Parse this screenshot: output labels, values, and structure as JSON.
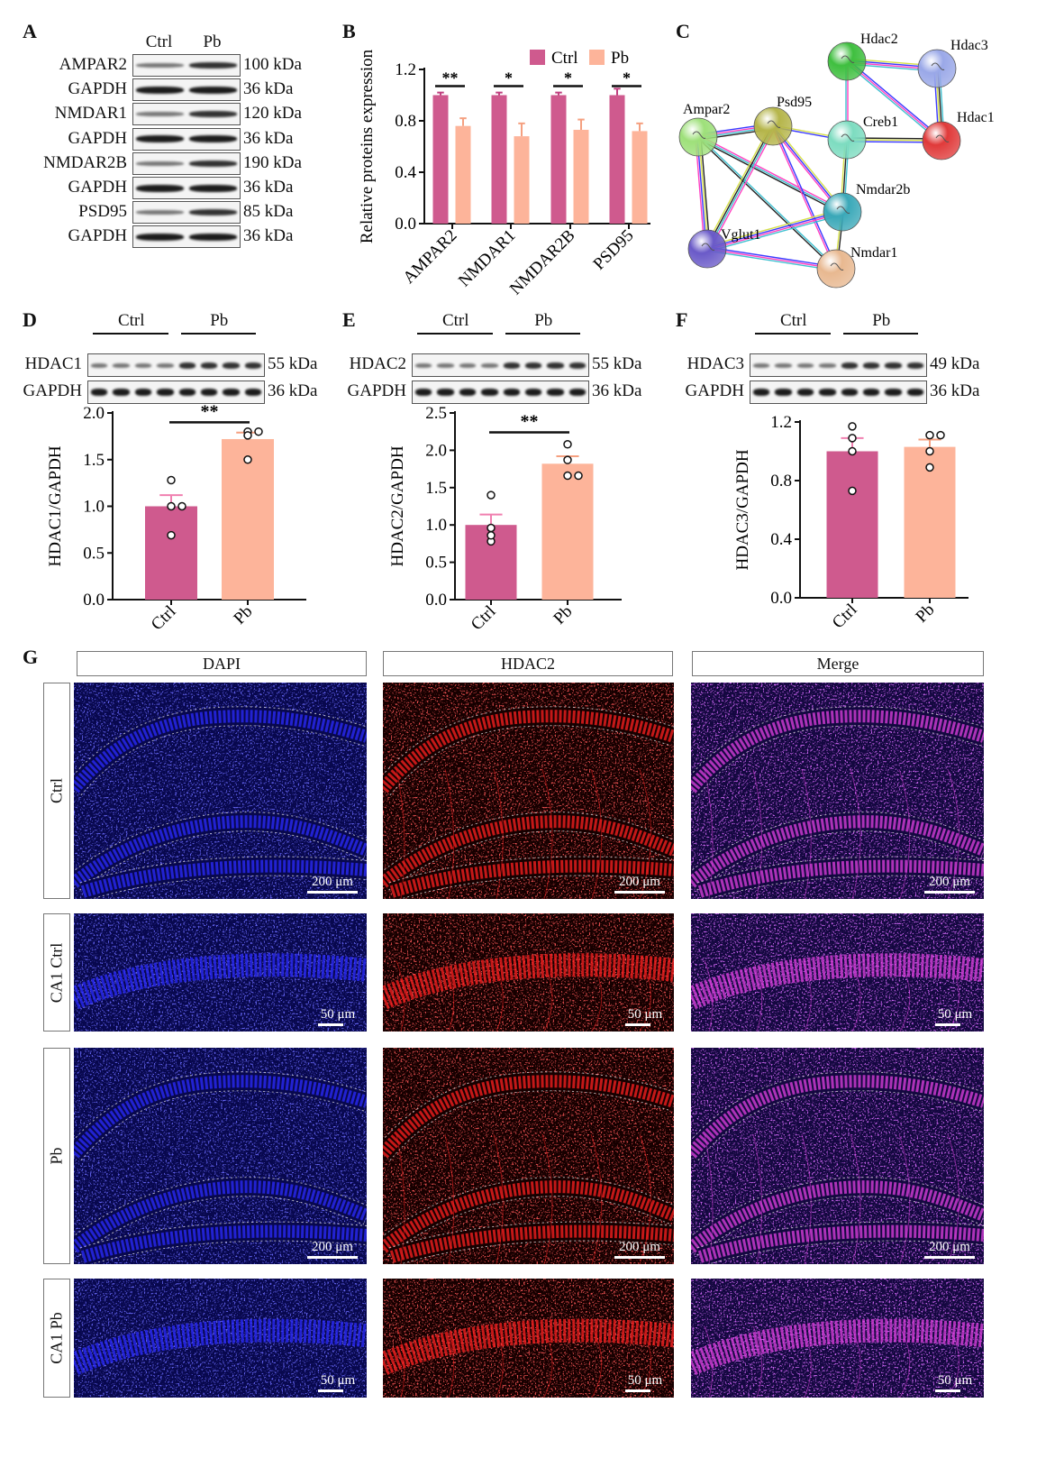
{
  "panels": {
    "A": "A",
    "B": "B",
    "C": "C",
    "D": "D",
    "E": "E",
    "F": "F",
    "G": "G"
  },
  "colors": {
    "ctrl": "#cf5a8e",
    "pb": "#fdb49a",
    "dapi": "#2b2bff",
    "hdac2": "#ff2020",
    "merge": "#e040e0"
  },
  "blot_a": {
    "groups": [
      "Ctrl",
      "Pb"
    ],
    "rows": [
      {
        "label": "AMPAR2",
        "kda": "100 kDa"
      },
      {
        "label": "GAPDH",
        "kda": "36 kDa"
      },
      {
        "label": "NMDAR1",
        "kda": "120 kDa"
      },
      {
        "label": "GAPDH",
        "kda": "36 kDa"
      },
      {
        "label": "NMDAR2B",
        "kda": "190 kDa"
      },
      {
        "label": "GAPDH",
        "kda": "36 kDa"
      },
      {
        "label": "PSD95",
        "kda": "85 kDa"
      },
      {
        "label": "GAPDH",
        "kda": "36 kDa"
      }
    ]
  },
  "blot_d": {
    "groups": [
      "Ctrl",
      "Pb"
    ],
    "rows": [
      {
        "label": "HDAC1",
        "kda": "55 kDa"
      },
      {
        "label": "GAPDH",
        "kda": "36 kDa"
      }
    ]
  },
  "blot_e": {
    "groups": [
      "Ctrl",
      "Pb"
    ],
    "rows": [
      {
        "label": "HDAC2",
        "kda": "55 kDa"
      },
      {
        "label": "GAPDH",
        "kda": "36 kDa"
      }
    ]
  },
  "blot_f": {
    "groups": [
      "Ctrl",
      "Pb"
    ],
    "rows": [
      {
        "label": "HDAC3",
        "kda": "49 kDa"
      },
      {
        "label": "GAPDH",
        "kda": "36 kDa"
      }
    ]
  },
  "network": {
    "nodes": [
      {
        "name": "Hdac2",
        "color": "#3fbf3f"
      },
      {
        "name": "Hdac3",
        "color": "#9aa8e8"
      },
      {
        "name": "Hdac1",
        "color": "#e03a3a"
      },
      {
        "name": "Creb1",
        "color": "#7ddcc0"
      },
      {
        "name": "Psd95",
        "color": "#b5b54a"
      },
      {
        "name": "Ampar2",
        "color": "#9ee07a"
      },
      {
        "name": "Nmdar2b",
        "color": "#3aa8b8"
      },
      {
        "name": "Vglut1",
        "color": "#6a5ac8"
      },
      {
        "name": "Nmdar1",
        "color": "#e8b890"
      }
    ],
    "edges": [
      [
        "Hdac2",
        "Hdac3"
      ],
      [
        "Hdac2",
        "Hdac1"
      ],
      [
        "Hdac2",
        "Creb1"
      ],
      [
        "Hdac3",
        "Hdac1"
      ],
      [
        "Creb1",
        "Hdac1"
      ],
      [
        "Psd95",
        "Creb1"
      ],
      [
        "Ampar2",
        "Psd95"
      ],
      [
        "Ampar2",
        "Nmdar2b"
      ],
      [
        "Ampar2",
        "Nmdar1"
      ],
      [
        "Ampar2",
        "Vglut1"
      ],
      [
        "Psd95",
        "Nmdar2b"
      ],
      [
        "Psd95",
        "Nmdar1"
      ],
      [
        "Psd95",
        "Vglut1"
      ],
      [
        "Creb1",
        "Nmdar2b"
      ],
      [
        "Nmdar2b",
        "Nmdar1"
      ],
      [
        "Vglut1",
        "Nmdar2b"
      ],
      [
        "Vglut1",
        "Nmdar1"
      ]
    ]
  },
  "chart_data": [
    {
      "type": "bar",
      "panel": "B",
      "categories": [
        "AMPAR2",
        "NMDAR1",
        "NMDAR2B",
        "PSD95"
      ],
      "series": [
        {
          "name": "Ctrl",
          "values": [
            1.0,
            1.0,
            1.0,
            1.0
          ],
          "errors": [
            0.02,
            0.02,
            0.02,
            0.05
          ]
        },
        {
          "name": "Pb",
          "values": [
            0.76,
            0.68,
            0.73,
            0.72
          ],
          "errors": [
            0.06,
            0.1,
            0.08,
            0.06
          ]
        }
      ],
      "significance": [
        "**",
        "*",
        "*",
        "*"
      ],
      "ylabel": "Relative proteins expression",
      "ylim": [
        0,
        1.2
      ],
      "yticks": [
        "0.0",
        "0.4",
        "0.8",
        "1.2"
      ],
      "legend": "top-right",
      "grid": false
    },
    {
      "type": "bar",
      "panel": "D",
      "categories": [
        "Ctrl",
        "Pb"
      ],
      "values": [
        1.0,
        1.72
      ],
      "errors": [
        0.12,
        0.07
      ],
      "points": [
        [
          1.28,
          1.0,
          1.0,
          0.69
        ],
        [
          1.8,
          1.76,
          1.8,
          1.5
        ]
      ],
      "significance": [
        "**"
      ],
      "ylabel": "HDAC1/GAPDH",
      "ylim": [
        0,
        2.0
      ],
      "yticks": [
        "0.0",
        "0.5",
        "1.0",
        "1.5",
        "2.0"
      ],
      "grid": false
    },
    {
      "type": "bar",
      "panel": "E",
      "categories": [
        "Ctrl",
        "Pb"
      ],
      "values": [
        1.0,
        1.82
      ],
      "errors": [
        0.14,
        0.1
      ],
      "points": [
        [
          1.4,
          0.96,
          0.78,
          0.86
        ],
        [
          2.08,
          1.87,
          1.66,
          1.66
        ]
      ],
      "significance": [
        "**"
      ],
      "ylabel": "HDAC2/GAPDH",
      "ylim": [
        0,
        2.5
      ],
      "yticks": [
        "0.0",
        "0.5",
        "1.0",
        "1.5",
        "2.0",
        "2.5"
      ],
      "grid": false
    },
    {
      "type": "bar",
      "panel": "F",
      "categories": [
        "Ctrl",
        "Pb"
      ],
      "values": [
        1.0,
        1.03
      ],
      "errors": [
        0.09,
        0.05
      ],
      "points": [
        [
          1.17,
          1.09,
          1.0,
          0.73
        ],
        [
          1.11,
          1.11,
          1.0,
          0.89
        ]
      ],
      "significance": [],
      "ylabel": "HDAC3/GAPDH",
      "ylim": [
        0,
        1.2
      ],
      "yticks": [
        "0.0",
        "0.4",
        "0.8",
        "1.2"
      ],
      "grid": false
    }
  ],
  "imaging": {
    "columns": [
      "DAPI",
      "HDAC2",
      "Merge"
    ],
    "rows": [
      {
        "label": "Ctrl",
        "scale": "200 μm",
        "kind": "overview"
      },
      {
        "label": "CA1 Ctrl",
        "scale": "50 μm",
        "kind": "ca1"
      },
      {
        "label": "Pb",
        "scale": "200 μm",
        "kind": "overview"
      },
      {
        "label": "CA1 Pb",
        "scale": "50 μm",
        "kind": "ca1"
      }
    ]
  }
}
